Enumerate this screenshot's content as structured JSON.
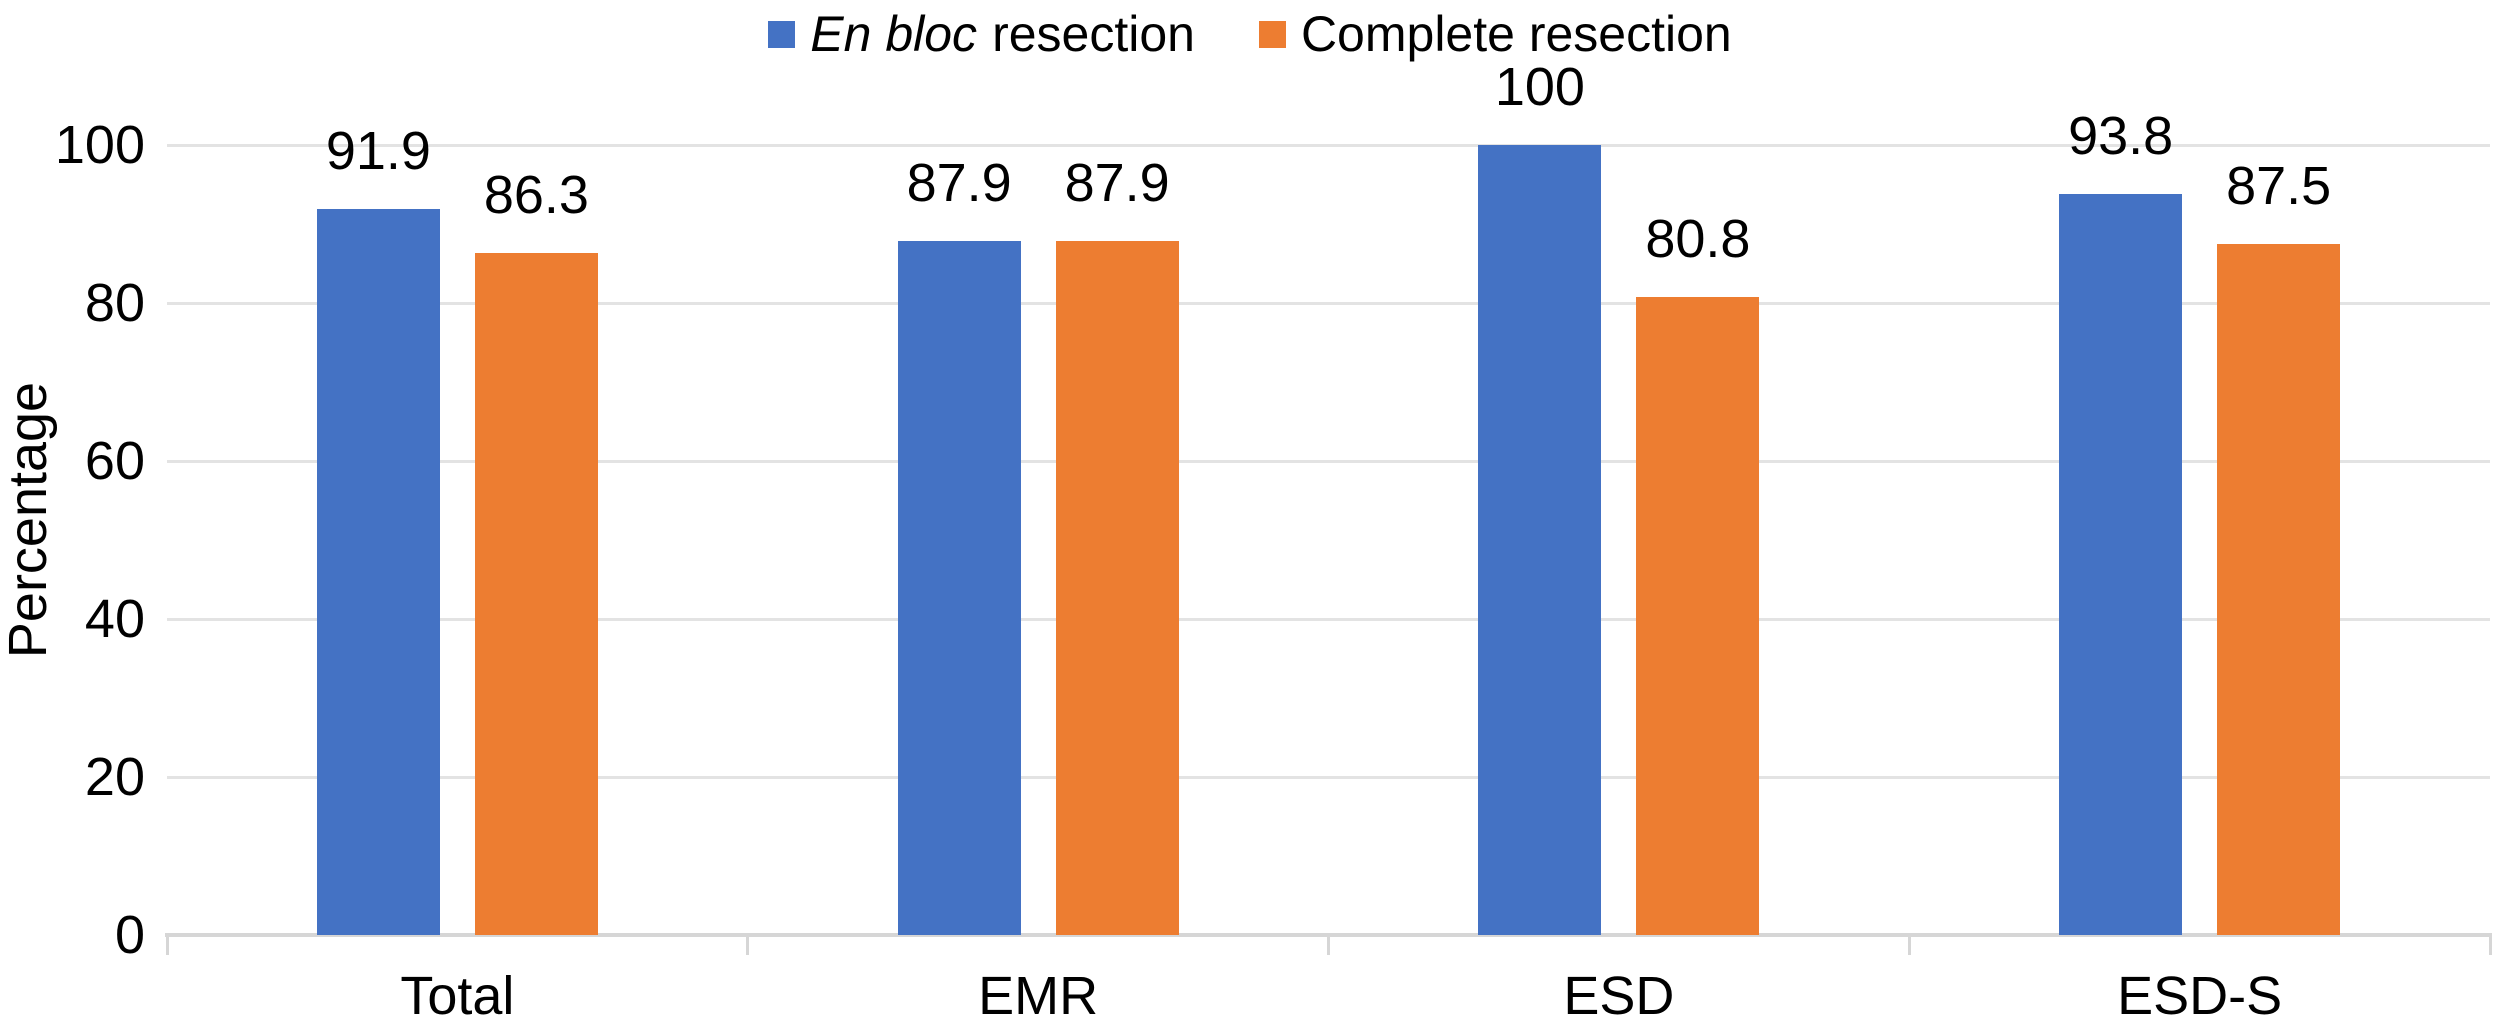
{
  "figure": {
    "background": "#FFFFFF",
    "text_color": "#000000"
  },
  "legend": {
    "items": [
      {
        "em": "En bloc",
        "rest": "resection",
        "color": "#4472C4"
      },
      {
        "em": "",
        "rest": "Complete resection",
        "color": "#ED7D31"
      }
    ]
  },
  "y_axis": {
    "title": "Percentage",
    "tick_labels": [
      "0",
      "20",
      "40",
      "60",
      "80",
      "100"
    ],
    "tick_values": [
      0,
      20,
      40,
      60,
      80,
      100
    ]
  },
  "x_axis": {
    "categories": [
      "Total",
      "EMR",
      "ESD",
      "ESD-S"
    ]
  },
  "chart_data": {
    "type": "bar",
    "categories": [
      "Total",
      "EMR",
      "ESD",
      "ESD-S"
    ],
    "series": [
      {
        "name": "En bloc resection",
        "color": "#4472C4",
        "values": [
          91.9,
          87.9,
          100,
          93.8
        ],
        "data_labels": [
          "91.9",
          "87.9",
          "100",
          "93.8"
        ]
      },
      {
        "name": "Complete resection",
        "color": "#ED7D31",
        "values": [
          86.3,
          87.9,
          80.8,
          87.5
        ],
        "data_labels": [
          "86.3",
          "87.9",
          "80.8",
          "87.5"
        ]
      }
    ],
    "title": "",
    "xlabel": "",
    "ylabel": "Percentage",
    "ylim": [
      0,
      100
    ],
    "grid": true,
    "gridline_color": "#E3E3E3",
    "axis_line_color": "#D6D6D6",
    "legend_position": "top"
  }
}
